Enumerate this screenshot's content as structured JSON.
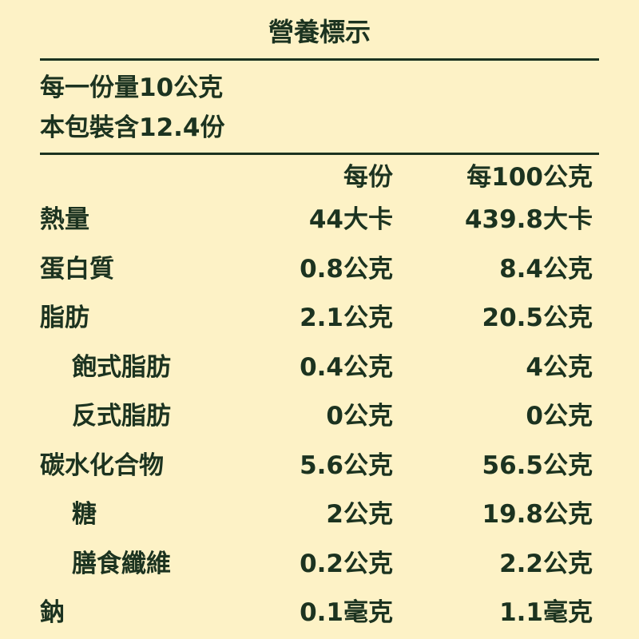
{
  "title": "營養標示",
  "serving_size": "每一份量10公克",
  "servings_per_package": "本包裝含12.4份",
  "columns": [
    "每份",
    "每100公克"
  ],
  "rows": [
    {
      "name": "熱量",
      "per_serving": "44大卡",
      "per_100g": "439.8大卡",
      "indent": false
    },
    {
      "name": "蛋白質",
      "per_serving": "0.8公克",
      "per_100g": "8.4公克",
      "indent": false
    },
    {
      "name": "脂肪",
      "per_serving": "2.1公克",
      "per_100g": "20.5公克",
      "indent": false
    },
    {
      "name": "飽式脂肪",
      "per_serving": "0.4公克",
      "per_100g": "4公克",
      "indent": true
    },
    {
      "name": "反式脂肪",
      "per_serving": "0公克",
      "per_100g": "0公克",
      "indent": true
    },
    {
      "name": "碳水化合物",
      "per_serving": "5.6公克",
      "per_100g": "56.5公克",
      "indent": false
    },
    {
      "name": "糖",
      "per_serving": "2公克",
      "per_100g": "19.8公克",
      "indent": true
    },
    {
      "name": "膳食纖維",
      "per_serving": "0.2公克",
      "per_100g": "2.2公克",
      "indent": true
    },
    {
      "name": "鈉",
      "per_serving": "0.1毫克",
      "per_100g": "1.1毫克",
      "indent": false
    }
  ],
  "colors": {
    "background": "#fdf2c6",
    "text": "#1c3320"
  }
}
